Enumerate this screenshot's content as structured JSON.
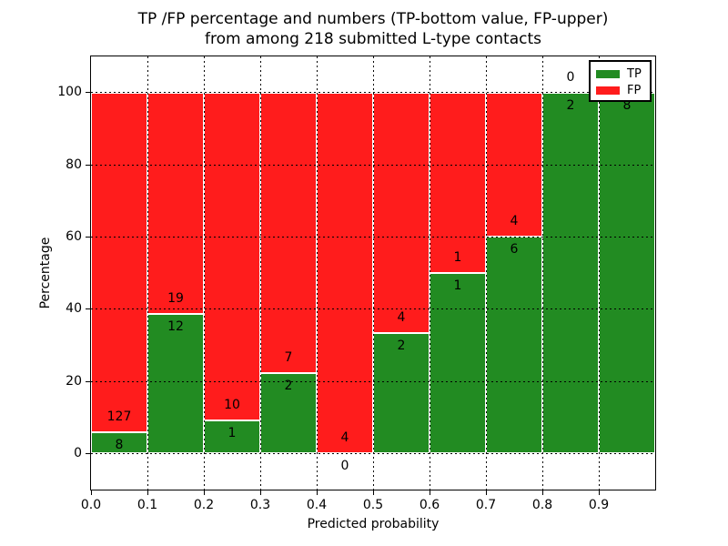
{
  "title": {
    "line1": "TP /FP percentage and numbers (TP-bottom value, FP-upper)",
    "line2": "from among 218 submitted L-type contacts"
  },
  "chart_data": {
    "type": "bar",
    "subtype": "stacked-100-percent",
    "title": "TP /FP percentage and numbers (TP-bottom value, FP-upper)",
    "subtitle": "from among 218 submitted L-type contacts",
    "xlabel": "Predicted probability",
    "ylabel": "Percentage",
    "xlim": [
      0.0,
      1.0
    ],
    "ylim": [
      -10,
      110
    ],
    "grid": true,
    "grid_style": "dotted",
    "total_contacts": 218,
    "bin_width": 0.1,
    "categories": [
      "0.0-0.1",
      "0.1-0.2",
      "0.2-0.3",
      "0.3-0.4",
      "0.4-0.5",
      "0.5-0.6",
      "0.6-0.7",
      "0.7-0.8",
      "0.8-0.9",
      "0.9-1.0"
    ],
    "series": [
      {
        "name": "TP",
        "color": "#228b22",
        "counts": [
          8,
          12,
          1,
          2,
          0,
          2,
          1,
          6,
          2,
          8
        ],
        "percent": [
          5.9,
          38.7,
          9.1,
          22.2,
          0.0,
          33.3,
          50.0,
          60.0,
          100.0,
          100.0
        ]
      },
      {
        "name": "FP",
        "color": "#ff1c1c",
        "counts": [
          127,
          19,
          10,
          7,
          4,
          4,
          1,
          4,
          0,
          0
        ],
        "percent": [
          94.1,
          61.3,
          90.9,
          77.8,
          100.0,
          66.7,
          50.0,
          40.0,
          0.0,
          0.0
        ]
      }
    ],
    "annotations": "TP count printed just below each TP/FP boundary, FP count just above it",
    "xticks": [
      "0.0",
      "0.1",
      "0.2",
      "0.3",
      "0.4",
      "0.5",
      "0.6",
      "0.7",
      "0.8",
      "0.9"
    ],
    "yticks": [
      "0",
      "20",
      "40",
      "60",
      "80",
      "100"
    ],
    "legend_position": "upper right"
  },
  "legend": {
    "entries": [
      {
        "label": "TP",
        "color": "#228b22"
      },
      {
        "label": "FP",
        "color": "#ff1c1c"
      }
    ]
  }
}
